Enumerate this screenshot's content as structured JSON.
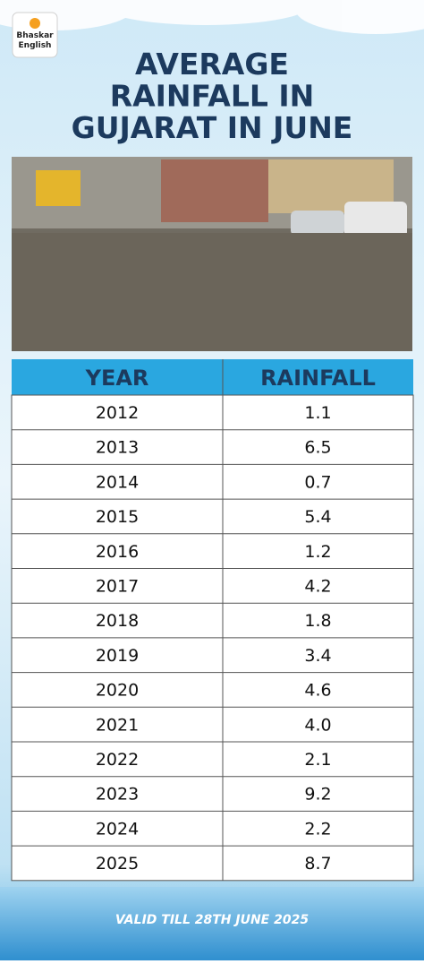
{
  "logo": {
    "lines": [
      "Bhaskar",
      "English"
    ]
  },
  "title": {
    "lines": [
      "AVERAGE",
      "RAINFALL IN",
      "GUJARAT IN JUNE"
    ]
  },
  "table": {
    "header": [
      "YEAR",
      "RAINFALL"
    ],
    "rows": [
      [
        "2012",
        "1.1"
      ],
      [
        "2013",
        "6.5"
      ],
      [
        "2014",
        "0.7"
      ],
      [
        "2015",
        "5.4"
      ],
      [
        "2016",
        "1.2"
      ],
      [
        "2017",
        "4.2"
      ],
      [
        "2018",
        "1.8"
      ],
      [
        "2019",
        "3.4"
      ],
      [
        "2020",
        "4.6"
      ],
      [
        "2021",
        "4.0"
      ],
      [
        "2022",
        "2.1"
      ],
      [
        "2023",
        "9.2"
      ],
      [
        "2024",
        "2.2"
      ],
      [
        "2025",
        "8.7"
      ]
    ]
  },
  "footer": "VALID TILL 28TH JUNE 2025"
}
